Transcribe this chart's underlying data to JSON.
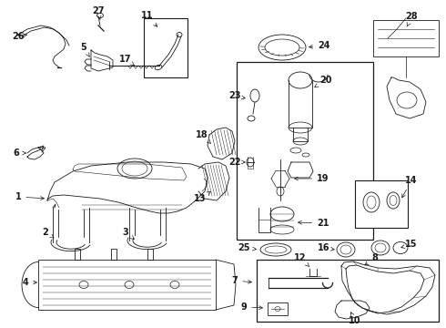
{
  "bg_color": "#ffffff",
  "line_color": "#1a1a1a",
  "fig_width": 4.9,
  "fig_height": 3.6,
  "dpi": 100,
  "label_fontsize": 7.0,
  "arrow_lw": 0.5,
  "part_lw": 0.6
}
